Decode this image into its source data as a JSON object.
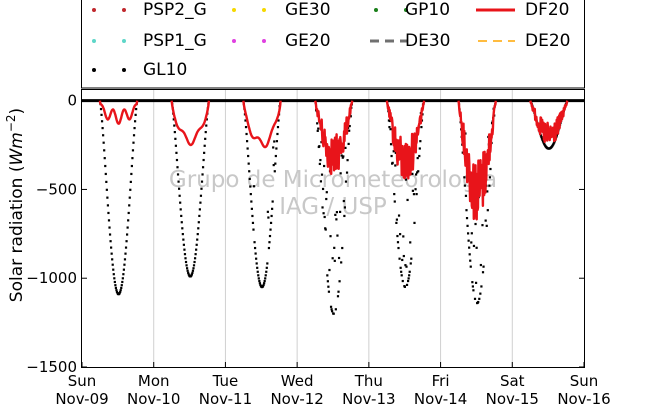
{
  "chart_data": {
    "type": "scatter",
    "ylabel": "Solar radiation (Wm⁻²)",
    "ylabel_base": "Solar radiation (",
    "ylabel_unit": "Wm",
    "ylabel_exp": "−2",
    "ylabel_close": ")",
    "ylim": [
      -1500,
      60
    ],
    "xlim": [
      0,
      7
    ],
    "grid": "vertical",
    "yticks": [
      {
        "value": 0,
        "label": "0"
      },
      {
        "value": -500,
        "label": "−500"
      },
      {
        "value": -1000,
        "label": "−1000"
      },
      {
        "value": -1500,
        "label": "−1500"
      }
    ],
    "xticks": [
      {
        "value": 0,
        "day": "Sun",
        "date": "Nov-09"
      },
      {
        "value": 1,
        "day": "Mon",
        "date": "Nov-10"
      },
      {
        "value": 2,
        "day": "Tue",
        "date": "Nov-11"
      },
      {
        "value": 3,
        "day": "Wed",
        "date": "Nov-12"
      },
      {
        "value": 4,
        "day": "Thu",
        "date": "Nov-13"
      },
      {
        "value": 5,
        "day": "Fri",
        "date": "Nov-14"
      },
      {
        "value": 6,
        "day": "Sat",
        "date": "Nov-15"
      },
      {
        "value": 7,
        "day": "Sun",
        "date": "Nov-16"
      }
    ],
    "watermark": [
      "Grupo de Micrometeorologia",
      "IAG / USP"
    ],
    "legend": {
      "placement": "top",
      "entries": [
        {
          "name": "PSP2_G",
          "color": "#c0282d",
          "style": "dots"
        },
        {
          "name": "GE30",
          "color": "#f5d800",
          "style": "dots"
        },
        {
          "name": "GP10",
          "color": "#1a7f1a",
          "style": "dots"
        },
        {
          "name": "DF20",
          "color": "#e8141a",
          "style": "line"
        },
        {
          "name": "PSP1_G",
          "color": "#5ed6c8",
          "style": "dots"
        },
        {
          "name": "GE20",
          "color": "#e040e0",
          "style": "dots"
        },
        {
          "name": "DE30",
          "color": "#707070",
          "style": "dashed"
        },
        {
          "name": "DE20",
          "color": "#ffa500",
          "style": "dashed"
        },
        {
          "name": "GL10",
          "color": "#000000",
          "style": "dots"
        }
      ]
    },
    "series": [
      {
        "name": "GL10",
        "color": "#000000",
        "day_peaks": [
          -1090,
          -990,
          -1050,
          -1200,
          -1050,
          -1140,
          -270,
          0
        ],
        "day_cloudiness": [
          0,
          0,
          0.15,
          0.6,
          0.55,
          0.45,
          0,
          0
        ]
      },
      {
        "name": "DF20",
        "color": "#e8141a",
        "day_peaks": [
          -130,
          -250,
          -270,
          -430,
          -480,
          -700,
          -270,
          0
        ]
      }
    ]
  }
}
